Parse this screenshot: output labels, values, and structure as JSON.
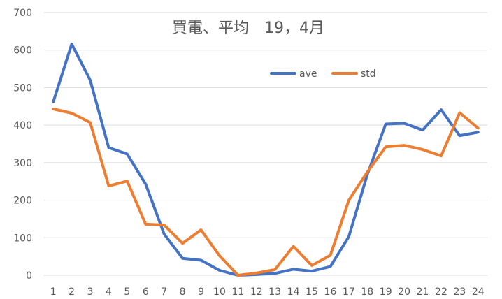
{
  "chart_data": {
    "type": "line",
    "title": "買電、平均　19，4月",
    "xlabel": "",
    "ylabel": "",
    "x": [
      1,
      2,
      3,
      4,
      5,
      6,
      7,
      8,
      9,
      10,
      11,
      12,
      13,
      14,
      15,
      16,
      17,
      18,
      19,
      20,
      21,
      22,
      23,
      24
    ],
    "x_tick_labels": [
      "1",
      "2",
      "3",
      "4",
      "5",
      "6",
      "7",
      "8",
      "9",
      "10",
      "11",
      "12",
      "13",
      "14",
      "15",
      "16",
      "17",
      "18",
      "19",
      "20",
      "21",
      "22",
      "23",
      "24"
    ],
    "ylim": [
      0,
      700
    ],
    "y_ticks": [
      0,
      100,
      200,
      300,
      400,
      500,
      600,
      700
    ],
    "y_tick_labels": [
      "0",
      "100",
      "200",
      "300",
      "400",
      "500",
      "600",
      "700"
    ],
    "grid": "horizontal",
    "legend_position": "top-right",
    "series": [
      {
        "name": "ave",
        "color": "#4472c4",
        "values": [
          462,
          616,
          520,
          340,
          323,
          243,
          110,
          45,
          40,
          13,
          0,
          2,
          5,
          16,
          11,
          23,
          103,
          268,
          403,
          405,
          387,
          441,
          372,
          381
        ]
      },
      {
        "name": "std",
        "color": "#ed7d31",
        "values": [
          443,
          432,
          407,
          238,
          251,
          136,
          134,
          85,
          121,
          52,
          0,
          6,
          15,
          77,
          26,
          53,
          200,
          275,
          342,
          346,
          335,
          318,
          433,
          392
        ]
      }
    ]
  }
}
